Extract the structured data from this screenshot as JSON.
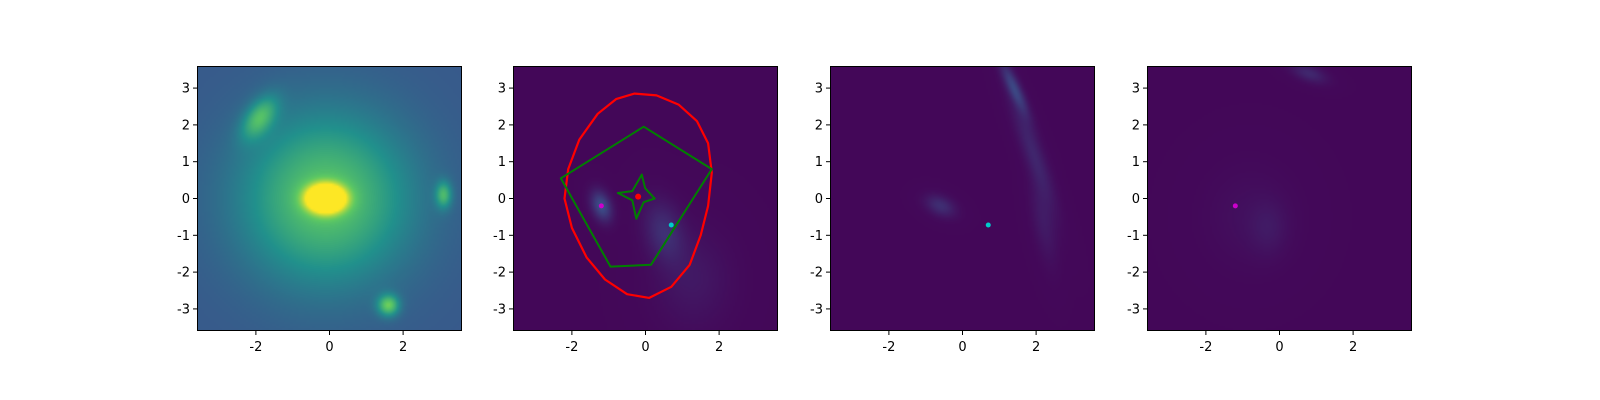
{
  "figure": {
    "background": "#ffffff"
  },
  "colormap": [
    "#440154",
    "#3b528b",
    "#21918c",
    "#5ec962",
    "#fde725"
  ],
  "colors": {
    "critical_curve": "#ff0000",
    "caustic": "#008000",
    "lens_center": "#ff0000",
    "source_magenta": "#cc00cc",
    "source_cyan": "#00cccc"
  },
  "chart_data": [
    {
      "type": "heatmap",
      "title": "",
      "xlabel": "",
      "ylabel": "",
      "xlim": [
        -3.6,
        3.6
      ],
      "ylim": [
        -3.6,
        3.6
      ],
      "xticks": [
        "-2",
        "0",
        "2"
      ],
      "xtick_values": [
        -2,
        0,
        2
      ],
      "yticks": [
        "3",
        "2",
        "1",
        "0",
        "-1",
        "-2",
        "-3"
      ],
      "ytick_values": [
        3,
        2,
        1,
        0,
        -1,
        -2,
        -3
      ],
      "background_level": 0.28,
      "features": [
        {
          "name": "main lens galaxy",
          "center": [
            -0.1,
            0.0
          ],
          "sigma": [
            0.35,
            0.25
          ],
          "angle": 0,
          "amplitude": 1.0,
          "halo": 0.45,
          "halo_sigma": 1.6
        },
        {
          "name": "upper-left galaxy",
          "center": [
            -1.9,
            2.2
          ],
          "sigma": [
            0.25,
            0.45
          ],
          "angle": -35,
          "amplitude": 0.35
        },
        {
          "name": "right galaxy",
          "center": [
            3.1,
            0.1
          ],
          "sigma": [
            0.15,
            0.25
          ],
          "angle": 0,
          "amplitude": 0.35
        },
        {
          "name": "bottom galaxy",
          "center": [
            1.6,
            -2.9
          ],
          "sigma": [
            0.2,
            0.2
          ],
          "angle": 0,
          "amplitude": 0.45
        }
      ],
      "lines": [],
      "points": []
    },
    {
      "type": "heatmap",
      "title": "",
      "xlabel": "",
      "ylabel": "",
      "xlim": [
        -3.6,
        3.6
      ],
      "ylim": [
        -3.6,
        3.6
      ],
      "xticks": [
        "-2",
        "0",
        "2"
      ],
      "xtick_values": [
        -2,
        0,
        2
      ],
      "yticks": [
        "3",
        "2",
        "1",
        "0",
        "-1",
        "-2",
        "-3"
      ],
      "ytick_values": [
        3,
        2,
        1,
        0,
        -1,
        -2,
        -3
      ],
      "background_level": 0.02,
      "features": [
        {
          "name": "left image",
          "center": [
            -1.2,
            -0.2
          ],
          "sigma": [
            0.18,
            0.3
          ],
          "angle": 20,
          "amplitude": 0.22
        },
        {
          "name": "right image",
          "center": [
            0.5,
            -0.9
          ],
          "sigma": [
            0.35,
            0.6
          ],
          "angle": 15,
          "amplitude": 0.12
        },
        {
          "name": "lower-right glow",
          "center": [
            1.3,
            -2.2
          ],
          "sigma": [
            0.7,
            0.9
          ],
          "angle": 0,
          "amplitude": 0.05
        }
      ],
      "lines": [
        {
          "name": "critical curve",
          "color_key": "critical_curve",
          "closed": true,
          "width": 2.2,
          "points": [
            [
              -0.3,
              2.85
            ],
            [
              0.3,
              2.8
            ],
            [
              0.9,
              2.55
            ],
            [
              1.4,
              2.1
            ],
            [
              1.7,
              1.5
            ],
            [
              1.8,
              0.7
            ],
            [
              1.7,
              -0.2
            ],
            [
              1.5,
              -1.0
            ],
            [
              1.2,
              -1.8
            ],
            [
              0.7,
              -2.4
            ],
            [
              0.1,
              -2.7
            ],
            [
              -0.5,
              -2.6
            ],
            [
              -1.1,
              -2.2
            ],
            [
              -1.6,
              -1.6
            ],
            [
              -2.0,
              -0.8
            ],
            [
              -2.2,
              0.0
            ],
            [
              -2.1,
              0.8
            ],
            [
              -1.8,
              1.6
            ],
            [
              -1.3,
              2.3
            ],
            [
              -0.8,
              2.7
            ]
          ]
        },
        {
          "name": "outer caustic",
          "color_key": "caustic",
          "closed": true,
          "width": 2.0,
          "points": [
            [
              -0.05,
              1.95
            ],
            [
              1.8,
              0.8
            ],
            [
              0.15,
              -1.8
            ],
            [
              -0.95,
              -1.85
            ],
            [
              -2.3,
              0.55
            ]
          ]
        },
        {
          "name": "inner caustic",
          "color_key": "caustic",
          "closed": true,
          "width": 2.0,
          "points": [
            [
              -0.1,
              0.65
            ],
            [
              -0.01,
              0.28
            ],
            [
              0.25,
              0.0
            ],
            [
              -0.05,
              -0.1
            ],
            [
              -0.25,
              -0.55
            ],
            [
              -0.36,
              -0.05
            ],
            [
              -0.75,
              0.15
            ],
            [
              -0.36,
              0.2
            ]
          ]
        }
      ],
      "points": [
        {
          "x": -0.2,
          "y": 0.05,
          "color_key": "lens_center",
          "size": 5
        },
        {
          "x": -1.2,
          "y": -0.2,
          "color_key": "source_magenta",
          "size": 4
        },
        {
          "x": 0.7,
          "y": -0.72,
          "color_key": "source_cyan",
          "size": 4
        }
      ]
    },
    {
      "type": "heatmap",
      "title": "",
      "xlabel": "",
      "ylabel": "",
      "xlim": [
        -3.6,
        3.6
      ],
      "ylim": [
        -3.6,
        3.6
      ],
      "xticks": [
        "-2",
        "0",
        "2"
      ],
      "xtick_values": [
        -2,
        0,
        2
      ],
      "yticks": [
        "3",
        "2",
        "1",
        "0",
        "-1",
        "-2",
        "-3"
      ],
      "ytick_values": [
        3,
        2,
        1,
        0,
        -1,
        -2,
        -3
      ],
      "background_level": 0.02,
      "features": [
        {
          "name": "arc upper",
          "center": [
            1.4,
            3.0
          ],
          "sigma": [
            0.12,
            0.55
          ],
          "angle": 25,
          "amplitude": 0.18
        },
        {
          "name": "arc middle",
          "center": [
            1.9,
            1.3
          ],
          "sigma": [
            0.18,
            1.1
          ],
          "angle": 20,
          "amplitude": 0.09
        },
        {
          "name": "arc lower",
          "center": [
            2.2,
            -0.6
          ],
          "sigma": [
            0.2,
            0.8
          ],
          "angle": 10,
          "amplitude": 0.06
        },
        {
          "name": "left blob",
          "center": [
            -0.6,
            -0.2
          ],
          "sigma": [
            0.3,
            0.18
          ],
          "angle": -25,
          "amplitude": 0.12
        }
      ],
      "lines": [],
      "points": [
        {
          "x": 0.7,
          "y": -0.72,
          "color_key": "source_cyan",
          "size": 4
        }
      ]
    },
    {
      "type": "heatmap",
      "title": "",
      "xlabel": "",
      "ylabel": "",
      "xlim": [
        -3.6,
        3.6
      ],
      "ylim": [
        -3.6,
        3.6
      ],
      "xticks": [
        "-2",
        "0",
        "2"
      ],
      "xtick_values": [
        -2,
        0,
        2
      ],
      "yticks": [
        "3",
        "2",
        "1",
        "0",
        "-1",
        "-2",
        "-3"
      ],
      "ytick_values": [
        3,
        2,
        1,
        0,
        -1,
        -2,
        -3
      ],
      "background_level": 0.02,
      "features": [
        {
          "name": "top arc",
          "center": [
            0.8,
            3.4
          ],
          "sigma": [
            0.35,
            0.15
          ],
          "angle": -20,
          "amplitude": 0.1
        },
        {
          "name": "faint center",
          "center": [
            -0.3,
            -0.8
          ],
          "sigma": [
            0.35,
            0.5
          ],
          "angle": 0,
          "amplitude": 0.04
        },
        {
          "name": "faint glow",
          "center": [
            -0.8,
            -0.5
          ],
          "sigma": [
            0.8,
            0.9
          ],
          "angle": 0,
          "amplitude": 0.025
        }
      ],
      "lines": [],
      "points": [
        {
          "x": -1.2,
          "y": -0.2,
          "color_key": "source_magenta",
          "size": 4
        }
      ]
    }
  ]
}
